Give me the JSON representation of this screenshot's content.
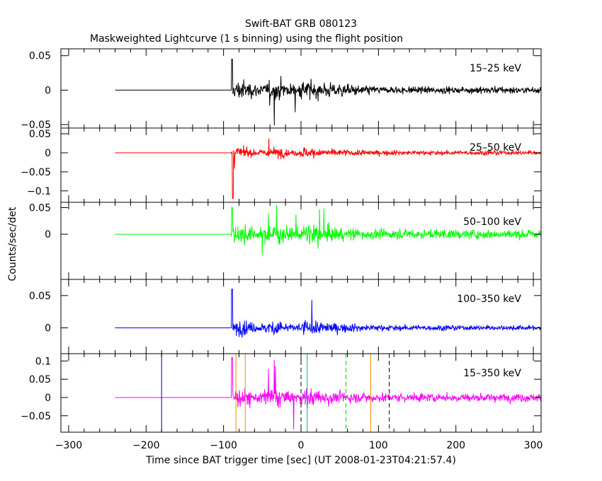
{
  "chart_data": {
    "type": "line",
    "title": "Swift-BAT GRB 080123",
    "subtitle": "Maskweighted Lightcurve (1 s binning) using the flight position",
    "xlabel": "Time since BAT trigger time [sec] (UT 2008-01-23T04:21:57.4)",
    "ylabel": "Counts/sec/det",
    "xlim": [
      -310,
      310
    ],
    "x_ticks": [
      -300,
      -200,
      -100,
      0,
      100,
      200,
      300
    ],
    "x_tick_labels": [
      "−300",
      "−200",
      "−100",
      "0",
      "100",
      "200",
      "300"
    ],
    "time_range": {
      "quiet_start": -240,
      "burst_start": -90,
      "end": 310
    },
    "panels": [
      {
        "band": "15–25 keV",
        "color": "#000000",
        "ylim": [
          -0.055,
          0.06
        ],
        "y_ticks": [
          -0.05,
          0,
          0.05
        ],
        "y_tick_labels": [
          "−0.05",
          "0",
          "0.05"
        ],
        "noise": 0.012,
        "late_noise": 0.005,
        "outlier": 0.045
      },
      {
        "band": "25–50 keV",
        "color": "#ff0000",
        "ylim": [
          -0.13,
          0.065
        ],
        "y_ticks": [
          -0.1,
          -0.05,
          0,
          0.05
        ],
        "y_tick_labels": [
          "−0.1",
          "−0.05",
          "0",
          "0.05"
        ],
        "noise": 0.012,
        "late_noise": 0.006,
        "outlier": 0.05,
        "spike": {
          "x": -88,
          "y": -0.12
        }
      },
      {
        "band": "50–100 keV",
        "color": "#00ff00",
        "ylim": [
          -0.085,
          0.06
        ],
        "y_ticks": [
          0,
          0.05
        ],
        "y_tick_labels": [
          "0",
          "0.05"
        ],
        "noise": 0.016,
        "late_noise": 0.009,
        "outlier": 0.05
      },
      {
        "band": "100–350 keV",
        "color": "#0000ff",
        "ylim": [
          -0.04,
          0.075
        ],
        "y_ticks": [
          0,
          0.05
        ],
        "y_tick_labels": [
          "0",
          "0.05"
        ],
        "noise": 0.01,
        "late_noise": 0.004,
        "outlier": 0.06
      },
      {
        "band": "15–350 keV",
        "color": "#ff00ff",
        "ylim": [
          -0.095,
          0.12
        ],
        "y_ticks": [
          -0.05,
          0,
          0.05,
          0.1
        ],
        "y_tick_labels": [
          "−0.05",
          "0",
          "0.05",
          "0.1"
        ],
        "noise": 0.022,
        "late_noise": 0.012,
        "outlier": 0.11
      }
    ],
    "markers": [
      {
        "x": -180,
        "color": "#0000aa",
        "style": "solid",
        "panel": 4
      },
      {
        "x": -72,
        "color": "#ff8800",
        "style": "solid",
        "panel": 4
      },
      {
        "x": -84,
        "color": "#ff8800",
        "style": "solid",
        "panel": 4
      },
      {
        "x": 0,
        "color": "#000000",
        "style": "dashed",
        "panel": 4
      },
      {
        "x": 8,
        "color": "#00aaaa",
        "style": "solid",
        "panel": 4
      },
      {
        "x": 58,
        "color": "#00cc00",
        "style": "dashed",
        "panel": 4
      },
      {
        "x": 90,
        "color": "#ff8800",
        "style": "solid",
        "panel": 4
      },
      {
        "x": 114,
        "color": "#000000",
        "style": "dashed",
        "panel": 4
      }
    ]
  }
}
